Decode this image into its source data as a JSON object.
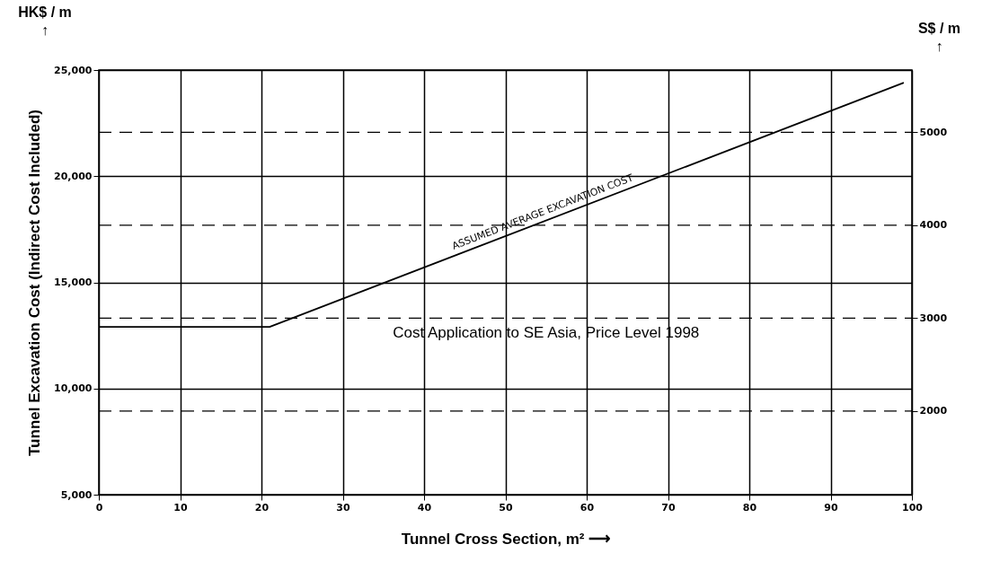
{
  "chart_data": {
    "type": "line",
    "xlabel": "Tunnel Cross Section, m² ⟶",
    "ylabel": "Tunnel Excavation Cost (Indirect Cost Included)",
    "y2label": "S$ / m\n↑",
    "annotations": [
      "HK$ / m\n↑",
      {
        "text": "ASSUMED AVERAGE EXCAVATION COST",
        "x": 55,
        "y": 17900
      },
      "Cost Application to SE Asia, Price Level 1998"
    ],
    "series": [
      {
        "color": "#000000",
        "x": [
          0,
          21,
          99
        ],
        "values": [
          12900,
          12900,
          24400
        ]
      }
    ],
    "xlim": [
      0,
      100
    ],
    "xticks": [
      0,
      10,
      20,
      30,
      40,
      50,
      60,
      70,
      80,
      90,
      100
    ],
    "ylim": [
      5000,
      25000
    ],
    "yticks": [
      {
        "value": 5000,
        "label": "5,000"
      },
      {
        "value": 10000,
        "label": "10,000"
      },
      {
        "value": 15000,
        "label": "15,000"
      },
      {
        "value": 20000,
        "label": "20,000"
      },
      {
        "value": 25000,
        "label": "25,000"
      }
    ],
    "y2lim": [
      1100,
      5670
    ],
    "y2ticks": [
      2000,
      3000,
      4000,
      5000
    ],
    "grid": true,
    "marker": "none",
    "line_style": "solid"
  }
}
